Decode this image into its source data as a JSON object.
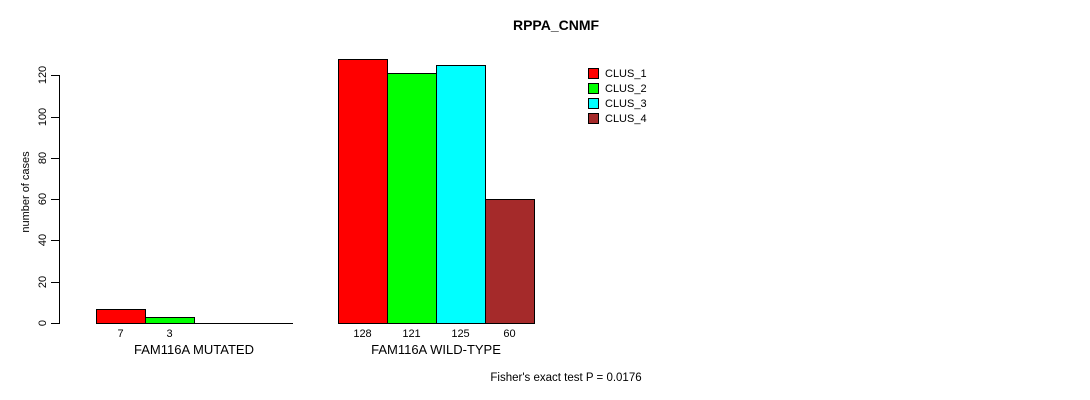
{
  "title": "RPPA_CNMF",
  "ylabel": "number of cases",
  "footer": "Fisher's exact test P = 0.0176",
  "legend": [
    {
      "label": "CLUS_1",
      "color": "#FF0000"
    },
    {
      "label": "CLUS_2",
      "color": "#00FF00"
    },
    {
      "label": "CLUS_3",
      "color": "#00FFFF"
    },
    {
      "label": "CLUS_4",
      "color": "#A52A2A"
    }
  ],
  "chart_data": {
    "type": "bar",
    "title": "RPPA_CNMF",
    "xlabel": "",
    "ylabel": "number of cases",
    "categories": [
      "FAM116A MUTATED",
      "FAM116A WILD-TYPE"
    ],
    "series": [
      {
        "name": "CLUS_1",
        "color": "#FF0000",
        "values": [
          7,
          128
        ]
      },
      {
        "name": "CLUS_2",
        "color": "#00FF00",
        "values": [
          3,
          121
        ]
      },
      {
        "name": "CLUS_3",
        "color": "#00FFFF",
        "values": [
          0,
          125
        ]
      },
      {
        "name": "CLUS_4",
        "color": "#A52A2A",
        "values": [
          0,
          60
        ]
      }
    ],
    "bar_value_labels_shown_only_for_nonzero": true,
    "yticks": [
      0,
      20,
      40,
      60,
      80,
      100,
      120
    ],
    "ylim": [
      0,
      128
    ],
    "grid": false,
    "legend_position": "top-right",
    "legend_entries": [
      "CLUS_1",
      "CLUS_2",
      "CLUS_3",
      "CLUS_4"
    ],
    "annotation": "Fisher's exact test P = 0.0176"
  }
}
